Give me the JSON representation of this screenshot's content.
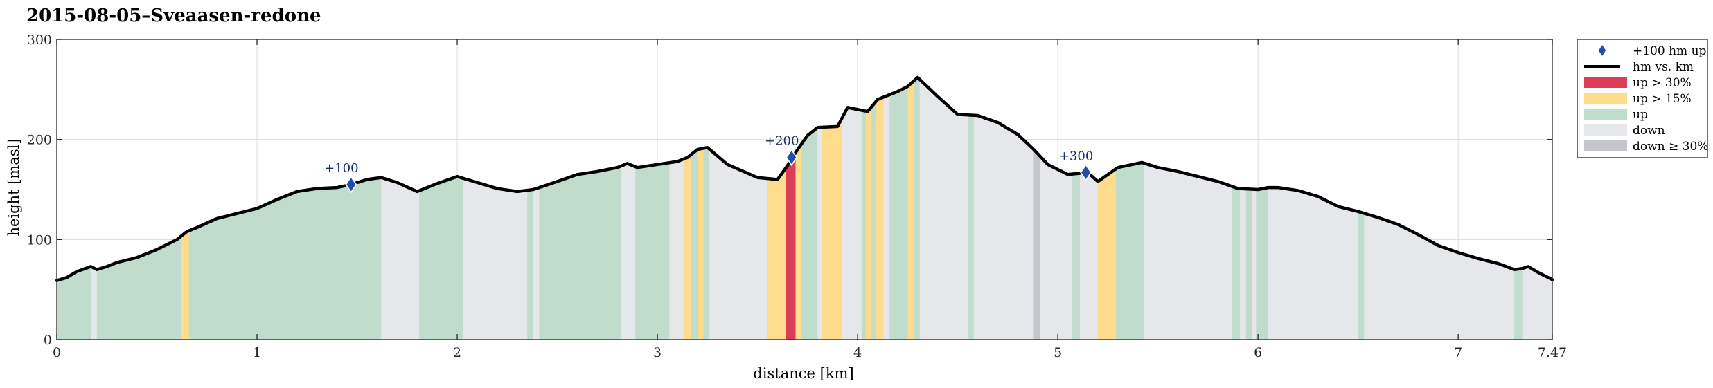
{
  "chart_data": {
    "type": "area",
    "title": "2015-08-05–Sveaasen-redone",
    "xlabel": "distance [km]",
    "ylabel": "height [masl]",
    "xlim": [
      0,
      7.47
    ],
    "ylim": [
      0,
      300
    ],
    "xticks": [
      0,
      1,
      2,
      3,
      4,
      5,
      6,
      7,
      7.47
    ],
    "xtick_labels": [
      "0",
      "1",
      "2",
      "3",
      "4",
      "5",
      "6",
      "7",
      "7.47"
    ],
    "yticks": [
      0,
      100,
      200,
      300
    ],
    "ytick_labels": [
      "0",
      "100",
      "200",
      "300"
    ],
    "grid": true,
    "legend_position": "outside-top-right",
    "colors": {
      "line": "#000000",
      "up30": "#dc3c55",
      "up15": "#fedc8c",
      "up": "#c0dccc",
      "down": "#e6e7ea",
      "down30": "#c4c6cc",
      "marker": "#1f4fa8"
    },
    "legend": [
      {
        "key": "marker",
        "label": "+100 hm up"
      },
      {
        "key": "line",
        "label": "hm vs. km"
      },
      {
        "key": "up30",
        "label": "up > 30%"
      },
      {
        "key": "up15",
        "label": "up > 15%"
      },
      {
        "key": "up",
        "label": "up"
      },
      {
        "key": "down",
        "label": "down"
      },
      {
        "key": "down30",
        "label": "down ≥ 30%"
      }
    ],
    "profile": {
      "x": [
        0,
        0.05,
        0.1,
        0.17,
        0.2,
        0.25,
        0.3,
        0.4,
        0.5,
        0.6,
        0.65,
        0.7,
        0.8,
        0.9,
        1.0,
        1.1,
        1.2,
        1.3,
        1.4,
        1.47,
        1.55,
        1.62,
        1.7,
        1.8,
        1.9,
        2.0,
        2.1,
        2.2,
        2.3,
        2.38,
        2.5,
        2.6,
        2.7,
        2.8,
        2.85,
        2.9,
        3.0,
        3.1,
        3.15,
        3.2,
        3.25,
        3.35,
        3.5,
        3.6,
        3.65,
        3.7,
        3.75,
        3.8,
        3.9,
        3.95,
        4.05,
        4.1,
        4.2,
        4.25,
        4.3,
        4.4,
        4.5,
        4.6,
        4.7,
        4.8,
        4.88,
        4.95,
        5.05,
        5.15,
        5.2,
        5.3,
        5.42,
        5.5,
        5.6,
        5.7,
        5.8,
        5.9,
        6.0,
        6.05,
        6.1,
        6.2,
        6.3,
        6.4,
        6.5,
        6.6,
        6.7,
        6.8,
        6.9,
        7.0,
        7.1,
        7.2,
        7.28,
        7.32,
        7.35,
        7.4,
        7.47
      ],
      "y": [
        59,
        62,
        68,
        73,
        70,
        73,
        77,
        82,
        90,
        100,
        108,
        112,
        121,
        126,
        131,
        140,
        148,
        151,
        152,
        155,
        160,
        162,
        157,
        148,
        156,
        163,
        157,
        151,
        148,
        150,
        158,
        165,
        168,
        172,
        176,
        172,
        175,
        178,
        182,
        190,
        192,
        175,
        162,
        160,
        174,
        190,
        204,
        212,
        213,
        232,
        228,
        240,
        248,
        253,
        262,
        243,
        225,
        224,
        217,
        205,
        190,
        175,
        165,
        167,
        158,
        172,
        177,
        172,
        168,
        163,
        158,
        151,
        150,
        152,
        152,
        149,
        143,
        133,
        128,
        122,
        115,
        105,
        94,
        87,
        81,
        76,
        70,
        71,
        73,
        67,
        60
      ]
    },
    "bands": [
      {
        "x0": 0.0,
        "x1": 0.17,
        "cat": "up"
      },
      {
        "x0": 0.17,
        "x1": 0.2,
        "cat": "down"
      },
      {
        "x0": 0.2,
        "x1": 0.62,
        "cat": "up"
      },
      {
        "x0": 0.62,
        "x1": 0.66,
        "cat": "up15"
      },
      {
        "x0": 0.66,
        "x1": 1.62,
        "cat": "up"
      },
      {
        "x0": 1.62,
        "x1": 1.81,
        "cat": "down"
      },
      {
        "x0": 1.81,
        "x1": 2.03,
        "cat": "up"
      },
      {
        "x0": 2.03,
        "x1": 2.35,
        "cat": "down"
      },
      {
        "x0": 2.35,
        "x1": 2.38,
        "cat": "up"
      },
      {
        "x0": 2.38,
        "x1": 2.41,
        "cat": "down"
      },
      {
        "x0": 2.41,
        "x1": 2.82,
        "cat": "up"
      },
      {
        "x0": 2.82,
        "x1": 2.89,
        "cat": "down"
      },
      {
        "x0": 2.89,
        "x1": 3.06,
        "cat": "up"
      },
      {
        "x0": 3.06,
        "x1": 3.13,
        "cat": "down"
      },
      {
        "x0": 3.13,
        "x1": 3.17,
        "cat": "up15"
      },
      {
        "x0": 3.17,
        "x1": 3.2,
        "cat": "up"
      },
      {
        "x0": 3.2,
        "x1": 3.23,
        "cat": "up15"
      },
      {
        "x0": 3.23,
        "x1": 3.26,
        "cat": "up"
      },
      {
        "x0": 3.26,
        "x1": 3.55,
        "cat": "down"
      },
      {
        "x0": 3.55,
        "x1": 3.64,
        "cat": "up15"
      },
      {
        "x0": 3.64,
        "x1": 3.69,
        "cat": "up30"
      },
      {
        "x0": 3.69,
        "x1": 3.72,
        "cat": "up15"
      },
      {
        "x0": 3.72,
        "x1": 3.8,
        "cat": "up"
      },
      {
        "x0": 3.8,
        "x1": 3.82,
        "cat": "down"
      },
      {
        "x0": 3.82,
        "x1": 3.92,
        "cat": "up15"
      },
      {
        "x0": 3.92,
        "x1": 4.02,
        "cat": "down"
      },
      {
        "x0": 4.02,
        "x1": 4.04,
        "cat": "up"
      },
      {
        "x0": 4.04,
        "x1": 4.07,
        "cat": "up15"
      },
      {
        "x0": 4.07,
        "x1": 4.09,
        "cat": "up"
      },
      {
        "x0": 4.09,
        "x1": 4.13,
        "cat": "up15"
      },
      {
        "x0": 4.13,
        "x1": 4.16,
        "cat": "down"
      },
      {
        "x0": 4.16,
        "x1": 4.25,
        "cat": "up"
      },
      {
        "x0": 4.25,
        "x1": 4.28,
        "cat": "up15"
      },
      {
        "x0": 4.28,
        "x1": 4.31,
        "cat": "up"
      },
      {
        "x0": 4.31,
        "x1": 4.55,
        "cat": "down"
      },
      {
        "x0": 4.55,
        "x1": 4.58,
        "cat": "up"
      },
      {
        "x0": 4.58,
        "x1": 4.88,
        "cat": "down"
      },
      {
        "x0": 4.88,
        "x1": 4.91,
        "cat": "down30"
      },
      {
        "x0": 4.91,
        "x1": 5.07,
        "cat": "down"
      },
      {
        "x0": 5.07,
        "x1": 5.11,
        "cat": "up"
      },
      {
        "x0": 5.11,
        "x1": 5.2,
        "cat": "down"
      },
      {
        "x0": 5.2,
        "x1": 5.29,
        "cat": "up15"
      },
      {
        "x0": 5.29,
        "x1": 5.43,
        "cat": "up"
      },
      {
        "x0": 5.43,
        "x1": 5.87,
        "cat": "down"
      },
      {
        "x0": 5.87,
        "x1": 5.91,
        "cat": "up"
      },
      {
        "x0": 5.91,
        "x1": 5.94,
        "cat": "down"
      },
      {
        "x0": 5.94,
        "x1": 5.97,
        "cat": "up"
      },
      {
        "x0": 5.97,
        "x1": 5.99,
        "cat": "down"
      },
      {
        "x0": 5.99,
        "x1": 6.05,
        "cat": "up"
      },
      {
        "x0": 6.05,
        "x1": 6.5,
        "cat": "down"
      },
      {
        "x0": 6.5,
        "x1": 6.53,
        "cat": "up"
      },
      {
        "x0": 6.53,
        "x1": 7.28,
        "cat": "down"
      },
      {
        "x0": 7.28,
        "x1": 7.32,
        "cat": "up"
      },
      {
        "x0": 7.32,
        "x1": 7.47,
        "cat": "down"
      }
    ],
    "markers": [
      {
        "label": "+100",
        "x": 1.47,
        "y": 155
      },
      {
        "label": "+200",
        "x": 3.67,
        "y": 182
      },
      {
        "label": "+300",
        "x": 5.14,
        "y": 167
      }
    ]
  }
}
